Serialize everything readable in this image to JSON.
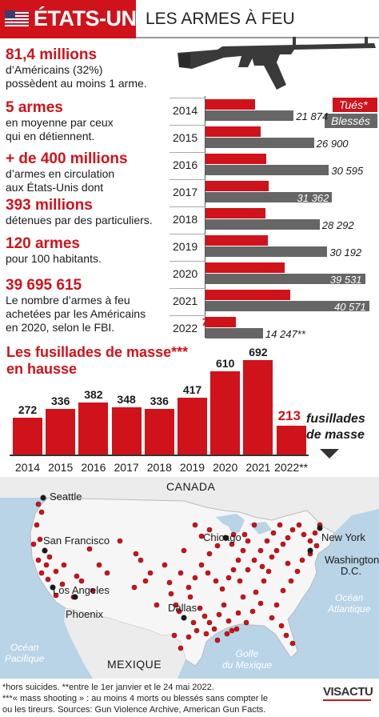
{
  "header": {
    "country": "ÉTATS-UNIS",
    "title": "LES ARMES À FEU",
    "flag_icon": "us-flag-icon",
    "accent": "#d0121b"
  },
  "stats": [
    {
      "big": "81,4 millions",
      "text": [
        "d’Américains (32%)",
        "possèdent au moins 1 arme."
      ]
    },
    {
      "big": "5 armes",
      "text": [
        "en moyenne par ceux",
        "qui en détiennent."
      ]
    },
    {
      "big": "+ de 400 millions",
      "text": [
        "d’armes en circulation",
        "aux États-Unis dont"
      ]
    },
    {
      "big": "393 millions",
      "text": [
        "détenues par des particuliers."
      ]
    },
    {
      "big": "120 armes",
      "text": [
        "pour 100 habitants."
      ]
    },
    {
      "big": "39 695 615",
      "text": [
        "Le nombre d’armes à feu",
        "achetées par les Américains",
        "en 2020, selon le FBI."
      ]
    }
  ],
  "chart_data": [
    {
      "type": "bar",
      "orientation": "horizontal",
      "categories": [
        "2014",
        "2015",
        "2016",
        "2017",
        "2018",
        "2019",
        "2020",
        "2021",
        "2022"
      ],
      "series": [
        {
          "name": "Tués*",
          "color": "#d0121b",
          "values": [
            12357,
            13571,
            15128,
            15733,
            14916,
            15490,
            19515,
            20920,
            7626
          ]
        },
        {
          "name": "Blessés",
          "color": "#666666",
          "values": [
            21874,
            26900,
            30595,
            31362,
            28292,
            30192,
            39531,
            40571,
            14247
          ]
        }
      ],
      "value_labels": {
        "Tués*": [
          "12 357",
          "13571",
          "15128",
          "15733",
          "14916",
          "15490",
          "19 515",
          "20 920",
          "7626**"
        ],
        "Blessés": [
          "21 874",
          "26 900",
          "30 595",
          "31 362",
          "28 292",
          "30 192",
          "39 531",
          "40 571",
          "14 247**"
        ]
      },
      "legend_position": "top-right",
      "xlim": [
        0,
        42000
      ]
    },
    {
      "type": "bar",
      "title": "Les fusillades de masse*** en hausse",
      "title_lines": [
        "Les fusillades de masse***",
        "en hausse"
      ],
      "categories": [
        "2014",
        "2015",
        "2016",
        "2017",
        "2018",
        "2019",
        "2020",
        "2021",
        "2022**"
      ],
      "values": [
        272,
        336,
        382,
        348,
        336,
        417,
        610,
        692,
        213
      ],
      "annotation": [
        "fusillades",
        "de masse"
      ],
      "ylim": [
        0,
        720
      ],
      "color": "#d0121b"
    }
  ],
  "map": {
    "countries": [
      "CANADA",
      "MEXIQUE"
    ],
    "cities": [
      "Seattle",
      "San Francisco",
      "Los Angeles",
      "Phoenix",
      "Dallas",
      "Chicago",
      "New York",
      "Washington",
      "D.C."
    ],
    "oceans": {
      "pacific": [
        "Océan",
        "Pacifique"
      ],
      "atlantic": [
        "Océan",
        "Atlantique"
      ],
      "gulf": [
        "Golfe",
        "du Mexique"
      ]
    },
    "dot_color": "#d0121b"
  },
  "footnotes": {
    "line1": "*hors suicides.  **entre le 1er janvier et le 24 mai 2022.",
    "line2": "***« mass shooting » : au moins 4 morts ou blessés sans compter le",
    "line3": "ou les tireurs.  Sources: Gun Violence Archive, American Gun Facts."
  },
  "brand": "VISACTU"
}
